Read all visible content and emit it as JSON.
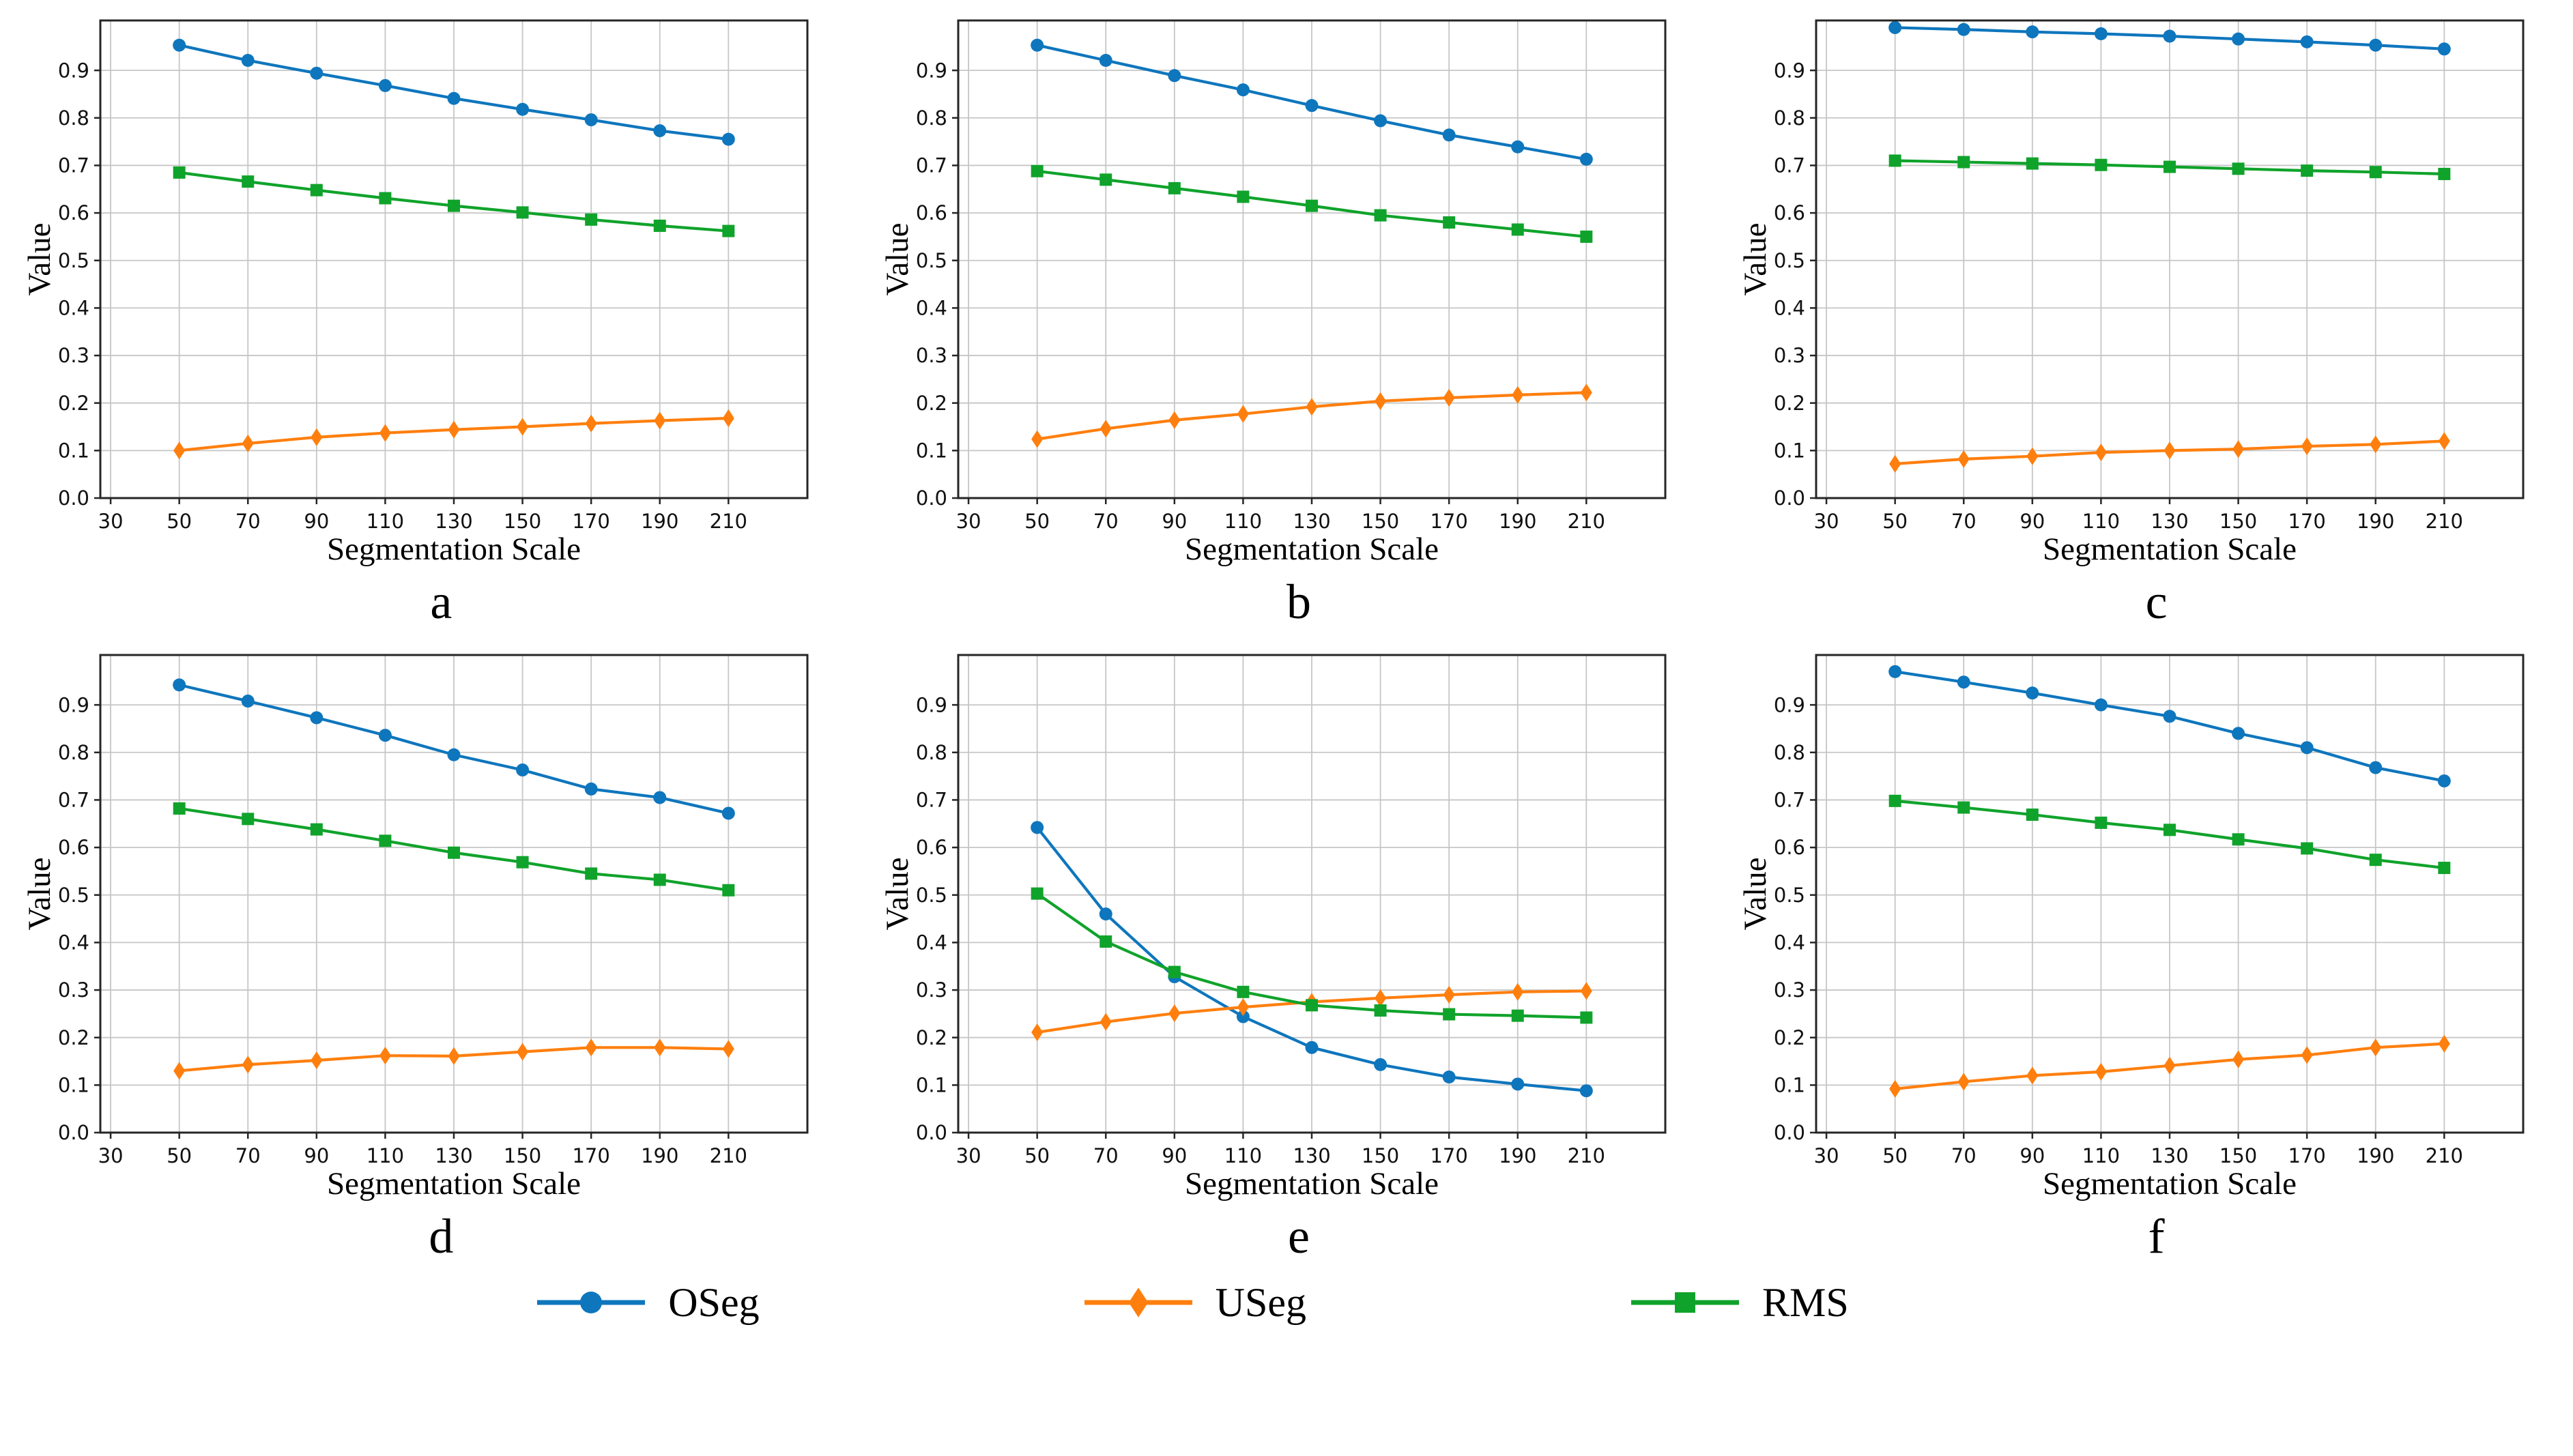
{
  "figure": {
    "xlabel": "Segmentation Scale",
    "ylabel": "Value",
    "colors": {
      "oseg": "#0e76bd",
      "useg": "#ff7f0e",
      "rms": "#10a32b",
      "grid": "#c6c6c6",
      "frame": "#262626"
    }
  },
  "legend": {
    "items": [
      {
        "label": "OSeg",
        "marker": "circle",
        "color": "#0e76bd"
      },
      {
        "label": "USeg",
        "marker": "diamond",
        "color": "#ff7f0e"
      },
      {
        "label": "RMS",
        "marker": "square",
        "color": "#10a32b"
      }
    ]
  },
  "chart_data": [
    {
      "id": "a",
      "caption": "a",
      "type": "line",
      "xlabel": "Segmentation Scale",
      "ylabel": "Value",
      "x": [
        50,
        70,
        90,
        110,
        130,
        150,
        170,
        190,
        210
      ],
      "xticks": [
        30,
        50,
        70,
        90,
        110,
        130,
        150,
        170,
        190,
        210
      ],
      "yticks": [
        0.0,
        0.1,
        0.2,
        0.3,
        0.4,
        0.5,
        0.6,
        0.7,
        0.8,
        0.9
      ],
      "xlim": [
        27,
        233
      ],
      "ylim": [
        0,
        1.005
      ],
      "grid": true,
      "legend_position": "bottom-shared",
      "series": [
        {
          "name": "OSeg",
          "color": "#0e76bd",
          "marker": "circle",
          "values": [
            0.953,
            0.921,
            0.894,
            0.868,
            0.841,
            0.818,
            0.796,
            0.773,
            0.755
          ]
        },
        {
          "name": "USeg",
          "color": "#ff7f0e",
          "marker": "diamond",
          "values": [
            0.1,
            0.115,
            0.128,
            0.137,
            0.144,
            0.15,
            0.157,
            0.163,
            0.168
          ]
        },
        {
          "name": "RMS",
          "color": "#10a32b",
          "marker": "square",
          "values": [
            0.685,
            0.666,
            0.648,
            0.631,
            0.615,
            0.601,
            0.586,
            0.573,
            0.562
          ]
        }
      ]
    },
    {
      "id": "b",
      "caption": "b",
      "type": "line",
      "xlabel": "Segmentation Scale",
      "ylabel": "Value",
      "x": [
        50,
        70,
        90,
        110,
        130,
        150,
        170,
        190,
        210
      ],
      "xticks": [
        30,
        50,
        70,
        90,
        110,
        130,
        150,
        170,
        190,
        210
      ],
      "yticks": [
        0.0,
        0.1,
        0.2,
        0.3,
        0.4,
        0.5,
        0.6,
        0.7,
        0.8,
        0.9
      ],
      "xlim": [
        27,
        233
      ],
      "ylim": [
        0,
        1.005
      ],
      "grid": true,
      "legend_position": "bottom-shared",
      "series": [
        {
          "name": "OSeg",
          "color": "#0e76bd",
          "marker": "circle",
          "values": [
            0.953,
            0.921,
            0.889,
            0.859,
            0.826,
            0.794,
            0.764,
            0.739,
            0.713
          ]
        },
        {
          "name": "USeg",
          "color": "#ff7f0e",
          "marker": "diamond",
          "values": [
            0.124,
            0.146,
            0.164,
            0.177,
            0.192,
            0.204,
            0.211,
            0.217,
            0.222
          ]
        },
        {
          "name": "RMS",
          "color": "#10a32b",
          "marker": "square",
          "values": [
            0.688,
            0.67,
            0.652,
            0.634,
            0.615,
            0.595,
            0.58,
            0.565,
            0.55
          ]
        }
      ]
    },
    {
      "id": "c",
      "caption": "c",
      "type": "line",
      "xlabel": "Segmentation Scale",
      "ylabel": "Value",
      "x": [
        50,
        70,
        90,
        110,
        130,
        150,
        170,
        190,
        210
      ],
      "xticks": [
        30,
        50,
        70,
        90,
        110,
        130,
        150,
        170,
        190,
        210
      ],
      "yticks": [
        0.0,
        0.1,
        0.2,
        0.3,
        0.4,
        0.5,
        0.6,
        0.7,
        0.8,
        0.9
      ],
      "xlim": [
        27,
        233
      ],
      "ylim": [
        0,
        1.005
      ],
      "grid": true,
      "legend_position": "bottom-shared",
      "series": [
        {
          "name": "OSeg",
          "color": "#0e76bd",
          "marker": "circle",
          "values": [
            0.99,
            0.986,
            0.981,
            0.977,
            0.972,
            0.966,
            0.96,
            0.953,
            0.945
          ]
        },
        {
          "name": "USeg",
          "color": "#ff7f0e",
          "marker": "diamond",
          "values": [
            0.072,
            0.082,
            0.088,
            0.096,
            0.1,
            0.103,
            0.109,
            0.113,
            0.12
          ]
        },
        {
          "name": "RMS",
          "color": "#10a32b",
          "marker": "square",
          "values": [
            0.71,
            0.707,
            0.704,
            0.701,
            0.697,
            0.693,
            0.689,
            0.686,
            0.682
          ]
        }
      ]
    },
    {
      "id": "d",
      "caption": "d",
      "type": "line",
      "xlabel": "Segmentation Scale",
      "ylabel": "Value",
      "x": [
        50,
        70,
        90,
        110,
        130,
        150,
        170,
        190,
        210
      ],
      "xticks": [
        30,
        50,
        70,
        90,
        110,
        130,
        150,
        170,
        190,
        210
      ],
      "yticks": [
        0.0,
        0.1,
        0.2,
        0.3,
        0.4,
        0.5,
        0.6,
        0.7,
        0.8,
        0.9
      ],
      "xlim": [
        27,
        233
      ],
      "ylim": [
        0,
        1.005
      ],
      "grid": true,
      "legend_position": "bottom-shared",
      "series": [
        {
          "name": "OSeg",
          "color": "#0e76bd",
          "marker": "circle",
          "values": [
            0.942,
            0.908,
            0.873,
            0.836,
            0.795,
            0.763,
            0.723,
            0.705,
            0.672
          ]
        },
        {
          "name": "USeg",
          "color": "#ff7f0e",
          "marker": "diamond",
          "values": [
            0.13,
            0.143,
            0.152,
            0.162,
            0.161,
            0.17,
            0.179,
            0.179,
            0.176
          ]
        },
        {
          "name": "RMS",
          "color": "#10a32b",
          "marker": "square",
          "values": [
            0.682,
            0.66,
            0.638,
            0.614,
            0.589,
            0.569,
            0.545,
            0.532,
            0.51
          ]
        }
      ]
    },
    {
      "id": "e",
      "caption": "e",
      "type": "line",
      "xlabel": "Segmentation Scale",
      "ylabel": "Value",
      "x": [
        50,
        70,
        90,
        110,
        130,
        150,
        170,
        190,
        210
      ],
      "xticks": [
        30,
        50,
        70,
        90,
        110,
        130,
        150,
        170,
        190,
        210
      ],
      "yticks": [
        0.0,
        0.1,
        0.2,
        0.3,
        0.4,
        0.5,
        0.6,
        0.7,
        0.8,
        0.9
      ],
      "xlim": [
        27,
        233
      ],
      "ylim": [
        0,
        1.005
      ],
      "grid": true,
      "legend_position": "bottom-shared",
      "series": [
        {
          "name": "OSeg",
          "color": "#0e76bd",
          "marker": "circle",
          "values": [
            0.642,
            0.46,
            0.328,
            0.244,
            0.179,
            0.143,
            0.117,
            0.102,
            0.088
          ]
        },
        {
          "name": "USeg",
          "color": "#ff7f0e",
          "marker": "diamond",
          "values": [
            0.211,
            0.233,
            0.251,
            0.264,
            0.275,
            0.283,
            0.29,
            0.296,
            0.298
          ]
        },
        {
          "name": "RMS",
          "color": "#10a32b",
          "marker": "square",
          "values": [
            0.503,
            0.402,
            0.338,
            0.296,
            0.268,
            0.257,
            0.249,
            0.246,
            0.242
          ]
        }
      ]
    },
    {
      "id": "f",
      "caption": "f",
      "type": "line",
      "xlabel": "Segmentation Scale",
      "ylabel": "Value",
      "x": [
        50,
        70,
        90,
        110,
        130,
        150,
        170,
        190,
        210
      ],
      "xticks": [
        30,
        50,
        70,
        90,
        110,
        130,
        150,
        170,
        190,
        210
      ],
      "yticks": [
        0.0,
        0.1,
        0.2,
        0.3,
        0.4,
        0.5,
        0.6,
        0.7,
        0.8,
        0.9
      ],
      "xlim": [
        27,
        233
      ],
      "ylim": [
        0,
        1.005
      ],
      "grid": true,
      "legend_position": "bottom-shared",
      "series": [
        {
          "name": "OSeg",
          "color": "#0e76bd",
          "marker": "circle",
          "values": [
            0.97,
            0.948,
            0.925,
            0.9,
            0.876,
            0.84,
            0.81,
            0.768,
            0.74
          ]
        },
        {
          "name": "USeg",
          "color": "#ff7f0e",
          "marker": "diamond",
          "values": [
            0.092,
            0.107,
            0.12,
            0.128,
            0.141,
            0.154,
            0.163,
            0.179,
            0.187
          ]
        },
        {
          "name": "RMS",
          "color": "#10a32b",
          "marker": "square",
          "values": [
            0.698,
            0.684,
            0.669,
            0.652,
            0.637,
            0.617,
            0.598,
            0.574,
            0.557
          ]
        }
      ]
    }
  ]
}
